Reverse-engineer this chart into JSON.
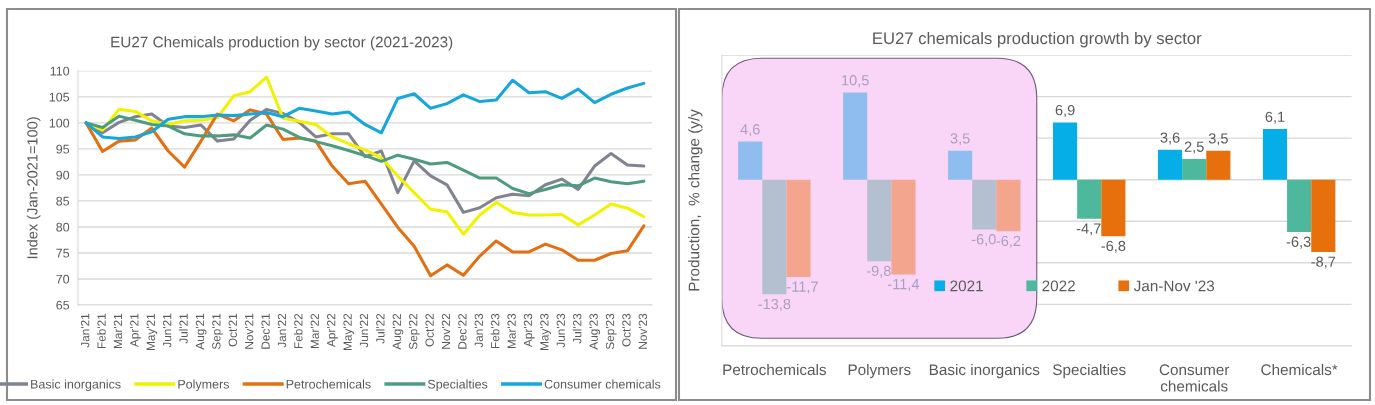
{
  "chart_data": [
    {
      "type": "line",
      "title": "EU27 Chemicals production by sector (2021-2023)",
      "ylabel": "Index (Jan-2021=100)",
      "categories": [
        "Jan'21",
        "Feb'21",
        "Mar'21",
        "Apr'21",
        "May'21",
        "Jun'21",
        "Jul'21",
        "Aug'21",
        "Sep'21",
        "Oct'21",
        "Nov'21",
        "Dec'21",
        "Jan'22",
        "Feb'22",
        "Mar'22",
        "Apr'22",
        "May'22",
        "Jun'22",
        "Jul'22",
        "Aug'22",
        "Sep'22",
        "Oct'22",
        "Nov'22",
        "Dec'22",
        "Jan'23",
        "Feb'23",
        "Mar'23",
        "Apr'23",
        "May'23",
        "Jun'23",
        "Jul'23",
        "Aug'23",
        "Sep'23",
        "Oct'23",
        "Nov'23"
      ],
      "series": [
        {
          "name": "Basic inorganics",
          "color": "#7f8490",
          "values": [
            100,
            98.1,
            100.1,
            101.2,
            101.7,
            99.4,
            99.1,
            99.6,
            96.5,
            96.9,
            100.5,
            102.6,
            101.8,
            100.1,
            97.3,
            97.9,
            97.9,
            93.5,
            94.6,
            86.6,
            92.7,
            89.8,
            88.1,
            82.8,
            83.7,
            85.6,
            86.3,
            86.0,
            88.1,
            89.2,
            87.2,
            91.7,
            94.1,
            91.9,
            91.7
          ]
        },
        {
          "name": "Polymers",
          "color": "#f2f200",
          "values": [
            100,
            98.6,
            102.6,
            102.2,
            100.4,
            99.7,
            100.4,
            100.5,
            101.0,
            105.2,
            106.0,
            108.8,
            100.9,
            100.3,
            99.7,
            97.3,
            96.0,
            94.8,
            93.3,
            89.8,
            86.6,
            83.4,
            82.9,
            78.6,
            82.3,
            84.7,
            82.8,
            82.3,
            82.3,
            82.4,
            80.4,
            82.3,
            84.4,
            83.6,
            82.0
          ]
        },
        {
          "name": "Petrochemicals",
          "color": "#e36f12",
          "values": [
            100,
            94.5,
            96.5,
            96.7,
            99.0,
            94.6,
            91.5,
            96.5,
            101.7,
            100.4,
            102.5,
            101.7,
            96.8,
            97.1,
            96.5,
            91.7,
            88.3,
            88.8,
            84.4,
            79.9,
            76.3,
            70.6,
            72.7,
            70.7,
            74.4,
            77.3,
            75.2,
            75.2,
            76.7,
            75.6,
            73.6,
            73.6,
            74.9,
            75.4,
            80.2
          ]
        },
        {
          "name": "Specialties",
          "color": "#4e9c7e",
          "values": [
            100,
            99.1,
            101.3,
            100.5,
            99.7,
            99.4,
            97.9,
            97.5,
            97.5,
            97.7,
            97.1,
            99.6,
            98.8,
            97.2,
            96.4,
            95.6,
            94.7,
            93.7,
            92.6,
            93.8,
            93.0,
            92.1,
            92.4,
            90.9,
            89.4,
            89.4,
            87.4,
            86.4,
            87.2,
            88.1,
            87.9,
            89.4,
            88.7,
            88.3,
            88.8
          ]
        },
        {
          "name": "Consumer chemicals",
          "color": "#17a6da",
          "values": [
            100,
            97.3,
            97.0,
            97.3,
            98.3,
            100.7,
            101.2,
            101.2,
            101.5,
            101.4,
            101.7,
            102.0,
            101.2,
            102.8,
            102.3,
            101.7,
            102.1,
            99.7,
            98.1,
            104.7,
            105.6,
            102.8,
            103.7,
            105.4,
            104.1,
            104.4,
            108.2,
            105.8,
            106.0,
            104.7,
            106.5,
            103.9,
            105.5,
            106.7,
            107.6
          ]
        }
      ],
      "ylim": [
        65,
        110
      ],
      "yticks": [
        65,
        70,
        75,
        80,
        85,
        90,
        95,
        100,
        105,
        110
      ],
      "grid": "y",
      "legend": "bottom",
      "line_style": "solid"
    },
    {
      "type": "bar",
      "title": "EU27 chemicals production growth by sector",
      "ylabel": "Production,  % change (y/y",
      "categories": [
        "Petrochemicals",
        "Polymers",
        "Basic inorganics",
        "Specialties",
        "Consumer\nchemicals",
        "Chemicals*"
      ],
      "series": [
        {
          "name": "2021",
          "color": "#06aee8",
          "colors": [
            "#8fbdf0",
            "#8fbdf0",
            "#8fbdf0",
            "#06aee8",
            "#06aee8",
            "#06aee8"
          ],
          "values": [
            4.6,
            10.5,
            3.5,
            6.9,
            3.6,
            6.1
          ],
          "value_labels": [
            "4,6",
            "10,5",
            "3,5",
            "6,9",
            "3,6",
            "6,1"
          ]
        },
        {
          "name": "2022",
          "color": "#4db89c",
          "colors": [
            "#b4bfcf",
            "#b4bfcf",
            "#b4bfcf",
            "#4db89c",
            "#4db89c",
            "#4db89c"
          ],
          "values": [
            -13.8,
            -9.8,
            -6.0,
            -4.7,
            2.5,
            -6.3
          ],
          "value_labels": [
            "-13,8",
            "-9,8",
            "-6,0",
            "-4,7",
            "2,5",
            "-6,3"
          ]
        },
        {
          "name": "Jan-Nov '23",
          "color": "#e8700c",
          "colors": [
            "#f4a58e",
            "#f4a58e",
            "#f4a58e",
            "#e8700c",
            "#e8700c",
            "#e8700c"
          ],
          "values": [
            -11.7,
            -11.4,
            -6.2,
            -6.8,
            3.5,
            -8.7
          ],
          "value_labels": [
            "-11,7",
            "-11,4",
            "-6,2",
            "-6,8",
            "3,5",
            "-8,7"
          ]
        }
      ],
      "ylim": [
        -20,
        15
      ],
      "yticks": [
        {
          "value": -20,
          "label": null
        },
        {
          "value": -15,
          "label": null
        },
        {
          "value": -10,
          "label": null
        },
        {
          "value": -5,
          "label": null
        },
        {
          "value": 0,
          "label": null
        },
        {
          "value": 5,
          "label": null
        },
        {
          "value": 10,
          "label": null
        },
        {
          "value": 15,
          "label": null
        }
      ],
      "tick_labels": "x",
      "grid": "y",
      "legend": "bottom",
      "bands": [
        {
          "axis": "x",
          "from": "Petrochemicals",
          "to": "Basic inorganics",
          "color": "#f9d6f8"
        }
      ]
    }
  ]
}
